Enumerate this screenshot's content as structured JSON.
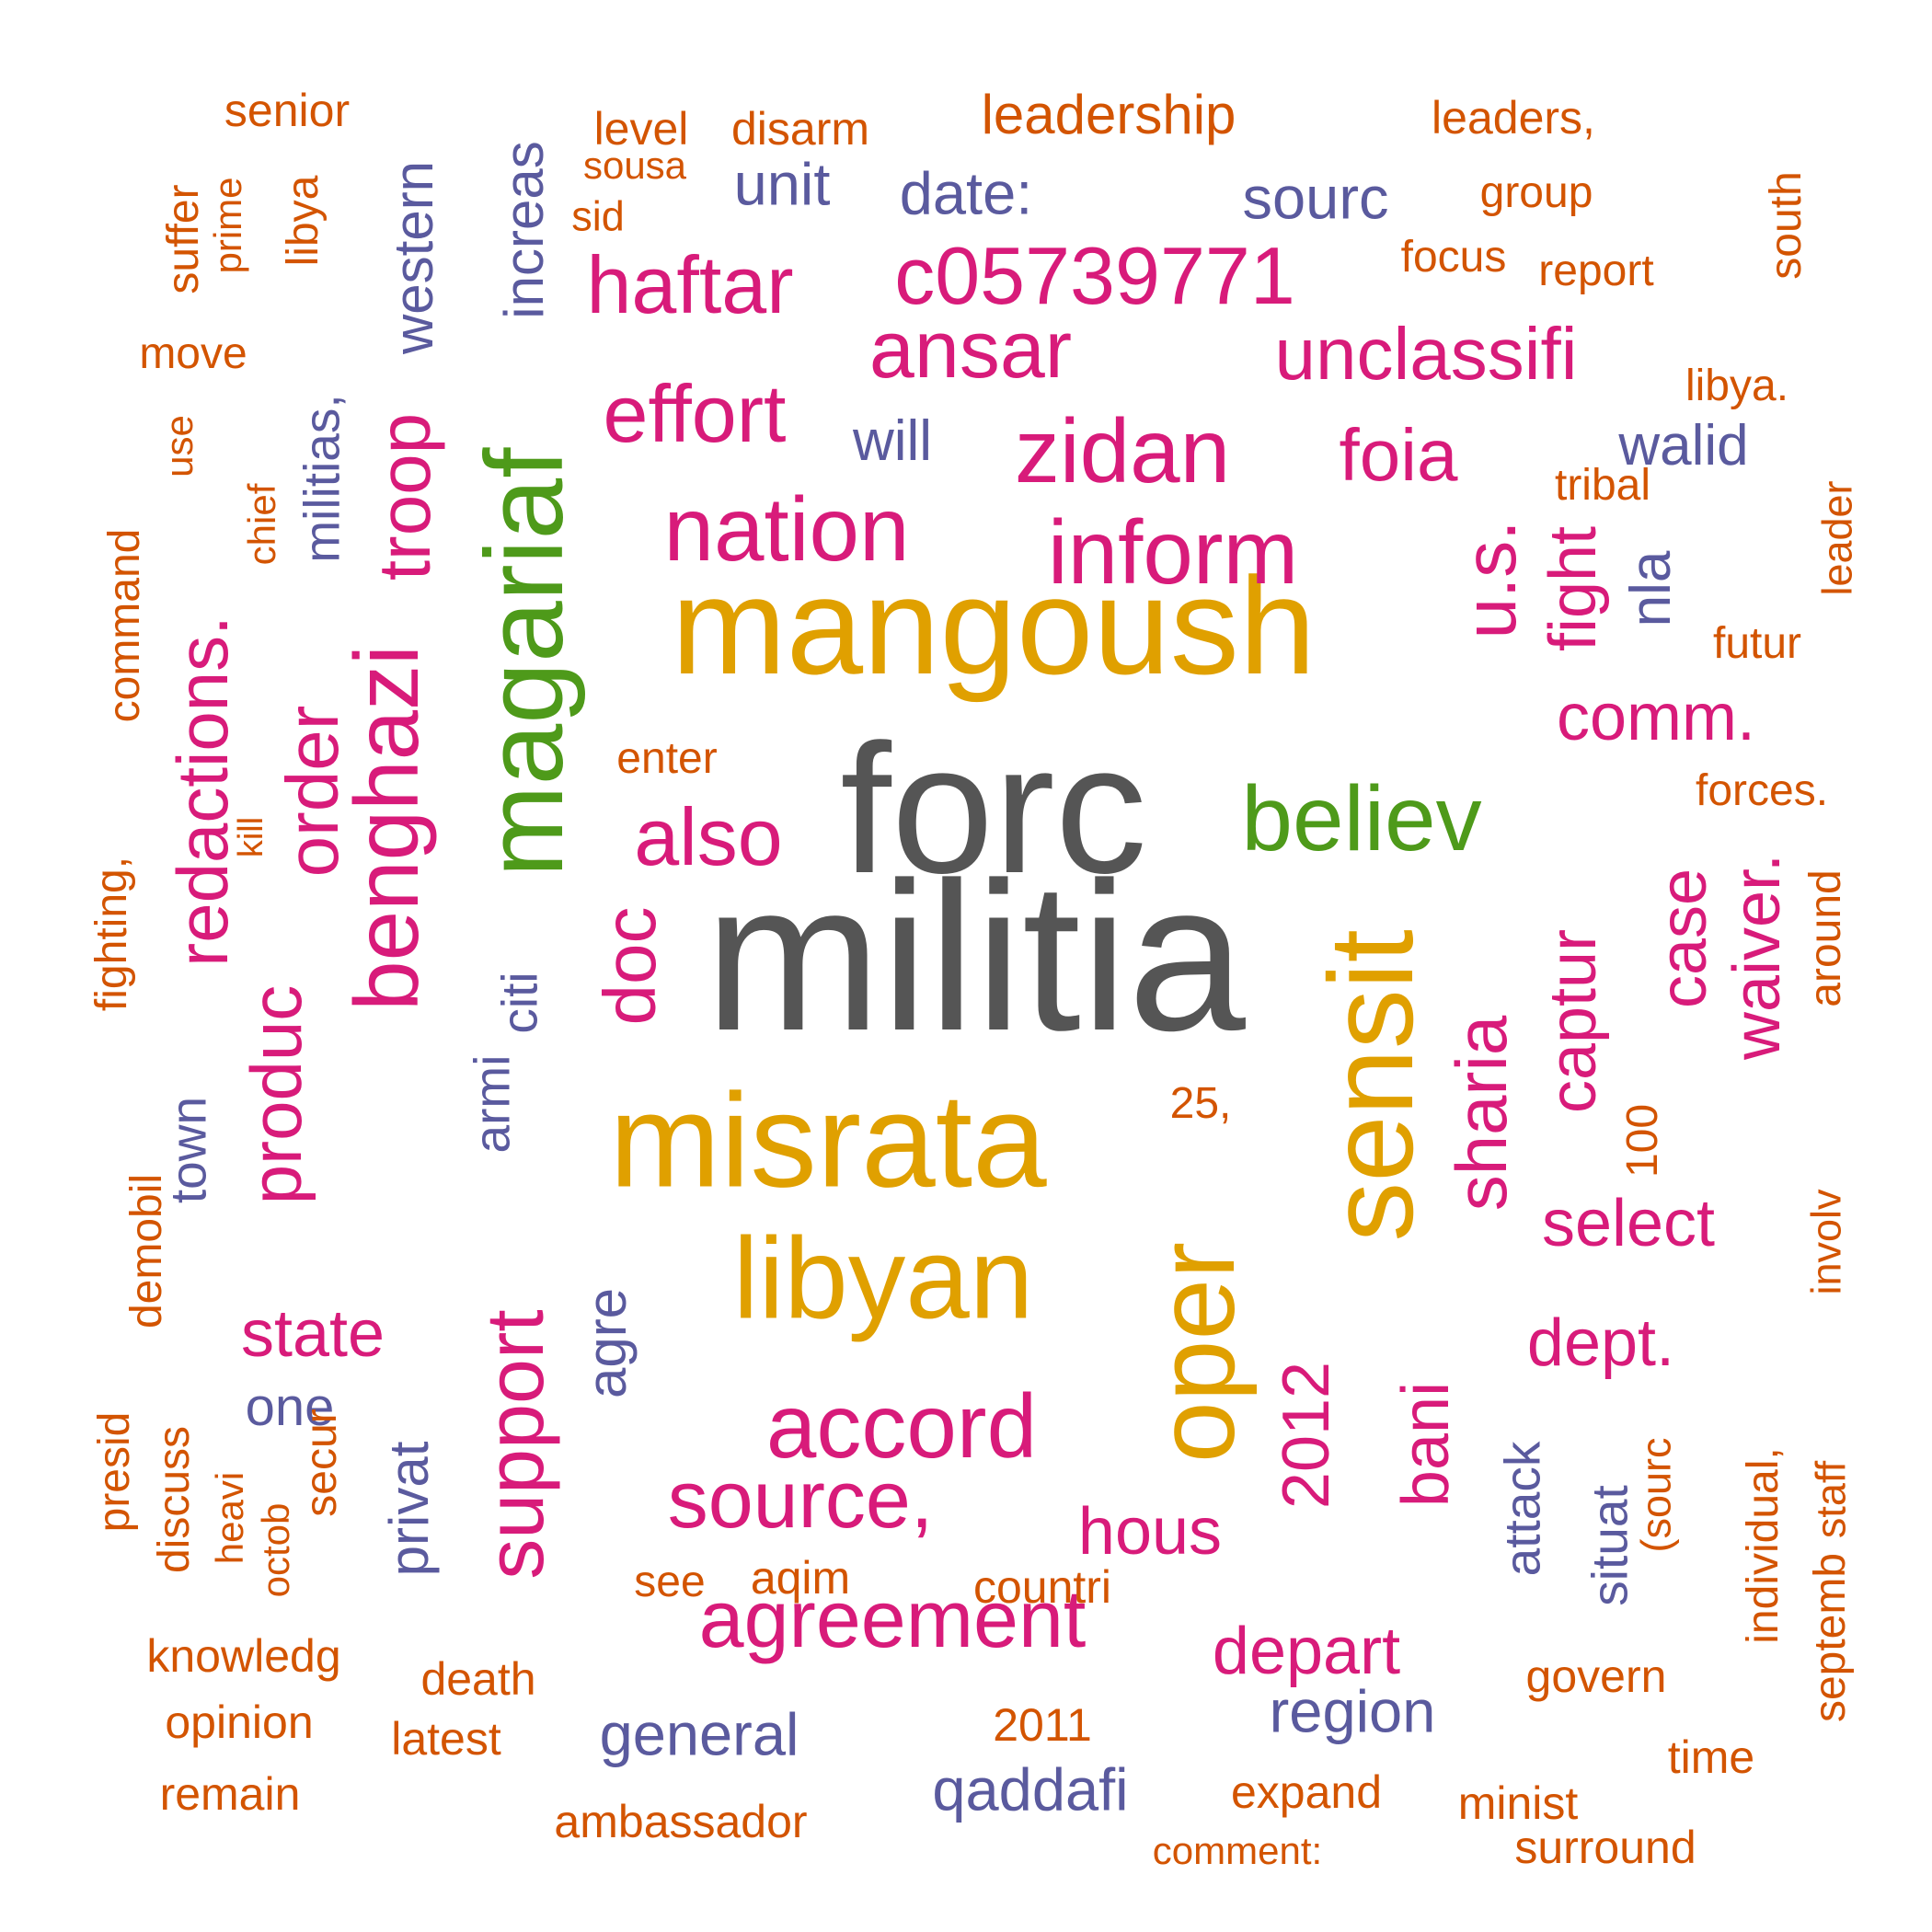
{
  "colors": {
    "dark": "#555555",
    "gold": "#E0A000",
    "green": "#4E9A1A",
    "magenta": "#D81B7A",
    "slate": "#5A5A9E",
    "orange": "#D35400"
  },
  "words": [
    {
      "text": "militia",
      "color": "dark"
    },
    {
      "text": "forc",
      "color": "dark"
    },
    {
      "text": "mangoush",
      "color": "gold"
    },
    {
      "text": "misrata",
      "color": "gold"
    },
    {
      "text": "libyan",
      "color": "gold"
    },
    {
      "text": "sensit",
      "color": "gold"
    },
    {
      "text": "oper",
      "color": "gold"
    },
    {
      "text": "magariaf",
      "color": "green"
    },
    {
      "text": "believ",
      "color": "green"
    },
    {
      "text": "inform",
      "color": "magenta"
    },
    {
      "text": "nation",
      "color": "magenta"
    },
    {
      "text": "zidan",
      "color": "magenta"
    },
    {
      "text": "benghazi",
      "color": "magenta"
    },
    {
      "text": "accord",
      "color": "magenta"
    },
    {
      "text": "source,",
      "color": "magenta"
    },
    {
      "text": "support",
      "color": "magenta"
    },
    {
      "text": "agreement",
      "color": "magenta"
    },
    {
      "text": "also",
      "color": "magenta"
    },
    {
      "text": "ansar",
      "color": "magenta"
    },
    {
      "text": "c05739771",
      "color": "magenta"
    },
    {
      "text": "haftar",
      "color": "magenta"
    },
    {
      "text": "effort",
      "color": "magenta"
    },
    {
      "text": "unclassifi",
      "color": "magenta"
    },
    {
      "text": "foia",
      "color": "magenta"
    },
    {
      "text": "u.s.",
      "color": "magenta"
    },
    {
      "text": "troop",
      "color": "magenta"
    },
    {
      "text": "order",
      "color": "magenta"
    },
    {
      "text": "redactions.",
      "color": "magenta"
    },
    {
      "text": "produc",
      "color": "magenta"
    },
    {
      "text": "doc",
      "color": "magenta"
    },
    {
      "text": "sharia",
      "color": "magenta"
    },
    {
      "text": "captur",
      "color": "magenta"
    },
    {
      "text": "case",
      "color": "magenta"
    },
    {
      "text": "waiver.",
      "color": "magenta"
    },
    {
      "text": "fight",
      "color": "magenta"
    },
    {
      "text": "comm.",
      "color": "magenta"
    },
    {
      "text": "select",
      "color": "magenta"
    },
    {
      "text": "dept.",
      "color": "magenta"
    },
    {
      "text": "bani",
      "color": "magenta"
    },
    {
      "text": "2012",
      "color": "magenta"
    },
    {
      "text": "state",
      "color": "magenta"
    },
    {
      "text": "hous",
      "color": "magenta"
    },
    {
      "text": "depart",
      "color": "magenta"
    },
    {
      "text": "date:",
      "color": "slate"
    },
    {
      "text": "unit",
      "color": "slate"
    },
    {
      "text": "sourc",
      "color": "slate"
    },
    {
      "text": "will",
      "color": "slate"
    },
    {
      "text": "walid",
      "color": "slate"
    },
    {
      "text": "nla",
      "color": "slate"
    },
    {
      "text": "western",
      "color": "slate"
    },
    {
      "text": "increas",
      "color": "slate"
    },
    {
      "text": "militias,",
      "color": "slate"
    },
    {
      "text": "citi",
      "color": "slate"
    },
    {
      "text": "armi",
      "color": "slate"
    },
    {
      "text": "town",
      "color": "slate"
    },
    {
      "text": "one",
      "color": "slate"
    },
    {
      "text": "privat",
      "color": "slate"
    },
    {
      "text": "agre",
      "color": "slate"
    },
    {
      "text": "general",
      "color": "slate"
    },
    {
      "text": "qaddafi",
      "color": "slate"
    },
    {
      "text": "region",
      "color": "slate"
    },
    {
      "text": "attack",
      "color": "slate"
    },
    {
      "text": "situat",
      "color": "slate"
    },
    {
      "text": "senior",
      "color": "orange"
    },
    {
      "text": "level",
      "color": "orange"
    },
    {
      "text": "disarm",
      "color": "orange"
    },
    {
      "text": "leadership",
      "color": "orange"
    },
    {
      "text": "leaders,",
      "color": "orange"
    },
    {
      "text": "sousa",
      "color": "orange"
    },
    {
      "text": "sid",
      "color": "orange"
    },
    {
      "text": "group",
      "color": "orange"
    },
    {
      "text": "suffer",
      "color": "orange"
    },
    {
      "text": "prime",
      "color": "orange"
    },
    {
      "text": "libya",
      "color": "orange"
    },
    {
      "text": "focus",
      "color": "orange"
    },
    {
      "text": "report",
      "color": "orange"
    },
    {
      "text": "south",
      "color": "orange"
    },
    {
      "text": "move",
      "color": "orange"
    },
    {
      "text": "libya.",
      "color": "orange"
    },
    {
      "text": "use",
      "color": "orange"
    },
    {
      "text": "chief",
      "color": "orange"
    },
    {
      "text": "command",
      "color": "orange"
    },
    {
      "text": "tribal",
      "color": "orange"
    },
    {
      "text": "leader",
      "color": "orange"
    },
    {
      "text": "futur",
      "color": "orange"
    },
    {
      "text": "enter",
      "color": "orange"
    },
    {
      "text": "forces.",
      "color": "orange"
    },
    {
      "text": "kill",
      "color": "orange"
    },
    {
      "text": "fighting,",
      "color": "orange"
    },
    {
      "text": "around",
      "color": "orange"
    },
    {
      "text": "25,",
      "color": "orange"
    },
    {
      "text": "100",
      "color": "orange"
    },
    {
      "text": "involv",
      "color": "orange"
    },
    {
      "text": "demobil",
      "color": "orange"
    },
    {
      "text": "presid",
      "color": "orange"
    },
    {
      "text": "discuss",
      "color": "orange"
    },
    {
      "text": "heavi",
      "color": "orange"
    },
    {
      "text": "octob",
      "color": "orange"
    },
    {
      "text": "secur",
      "color": "orange"
    },
    {
      "text": "individual,",
      "color": "orange"
    },
    {
      "text": "(sourc",
      "color": "orange"
    },
    {
      "text": "septemb",
      "color": "orange"
    },
    {
      "text": "staff",
      "color": "orange"
    },
    {
      "text": "see",
      "color": "orange"
    },
    {
      "text": "aqim",
      "color": "orange"
    },
    {
      "text": "countri",
      "color": "orange"
    },
    {
      "text": "knowledg",
      "color": "orange"
    },
    {
      "text": "death",
      "color": "orange"
    },
    {
      "text": "govern",
      "color": "orange"
    },
    {
      "text": "opinion",
      "color": "orange"
    },
    {
      "text": "latest",
      "color": "orange"
    },
    {
      "text": "2011",
      "color": "orange"
    },
    {
      "text": "time",
      "color": "orange"
    },
    {
      "text": "remain",
      "color": "orange"
    },
    {
      "text": "expand",
      "color": "orange"
    },
    {
      "text": "minist",
      "color": "orange"
    },
    {
      "text": "ambassador",
      "color": "orange"
    },
    {
      "text": "comment:",
      "color": "orange"
    },
    {
      "text": "surround",
      "color": "orange"
    }
  ]
}
